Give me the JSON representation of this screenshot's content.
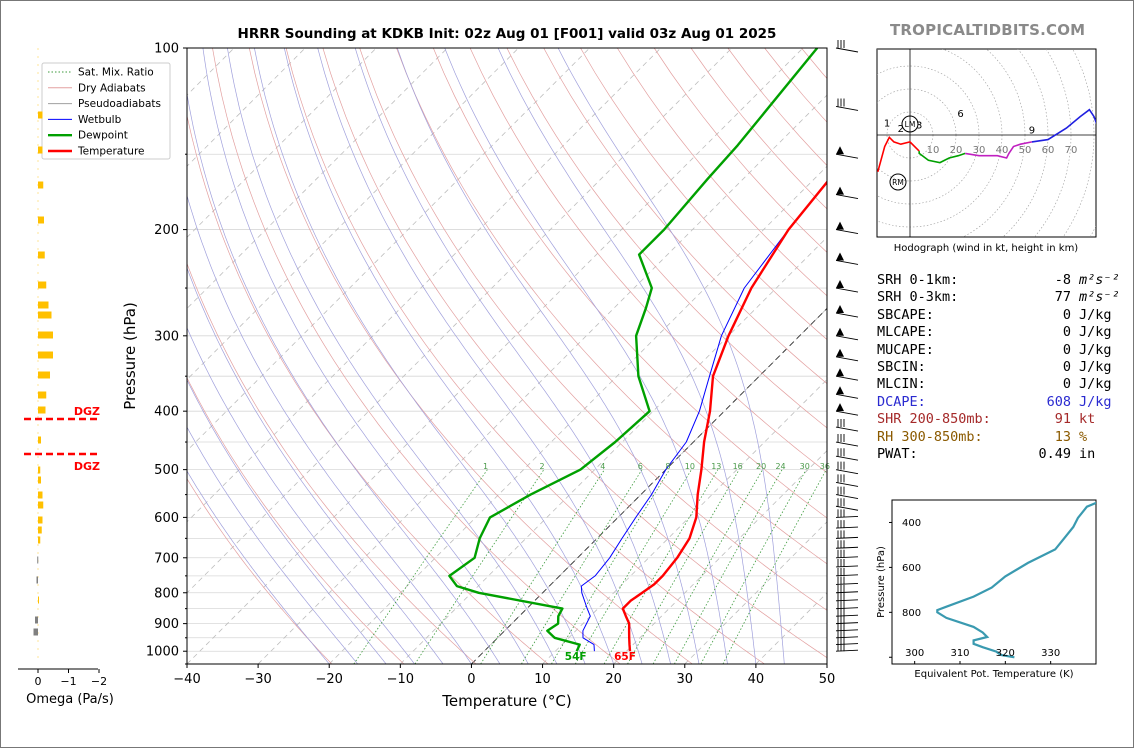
{
  "brand": "TROPICALTIDBITS.COM",
  "chart_data": [
    {
      "type": "line",
      "name": "skew-t",
      "title": "HRRR Sounding at KDKB Init: 02z Aug 01 [F001] valid 03z Aug 01 2025",
      "xlabel": "Temperature (°C)",
      "ylabel": "Pressure (hPa)",
      "xlim": [
        -40,
        50
      ],
      "ylim": [
        1050,
        100
      ],
      "yscale": "log",
      "xticks": [
        -40,
        -30,
        -20,
        -10,
        0,
        10,
        20,
        30,
        40,
        50
      ],
      "yticks": [
        100,
        200,
        300,
        400,
        500,
        600,
        700,
        800,
        900,
        1000
      ],
      "legend": [
        "Sat. Mix. Ratio",
        "Dry Adiabats",
        "Pseudoadiabats",
        "Wetbulb",
        "Dewpoint",
        "Temperature"
      ],
      "legend_position": "top-left",
      "mixing_ratio_labels": [
        "1",
        "2",
        "4",
        "6",
        "8",
        "10",
        "13",
        "16",
        "20",
        "24",
        "30",
        "36"
      ],
      "surface_labels": {
        "dewpoint": "54F",
        "temperature": "65F"
      },
      "temperature": [
        [
          1000,
          20.5
        ],
        [
          975,
          19.5
        ],
        [
          950,
          18.5
        ],
        [
          925,
          17.5
        ],
        [
          900,
          16.5
        ],
        [
          875,
          15
        ],
        [
          850,
          13.5
        ],
        [
          825,
          13.5
        ],
        [
          800,
          14
        ],
        [
          775,
          14.5
        ],
        [
          750,
          14.5
        ],
        [
          700,
          14
        ],
        [
          650,
          13
        ],
        [
          600,
          11
        ],
        [
          550,
          8
        ],
        [
          500,
          5
        ],
        [
          450,
          1.5
        ],
        [
          400,
          -2
        ],
        [
          350,
          -6.5
        ],
        [
          300,
          -10
        ],
        [
          250,
          -13.5
        ],
        [
          200,
          -16.5
        ],
        [
          150,
          -18.5
        ],
        [
          125,
          -20.5
        ],
        [
          100,
          -22.5
        ]
      ],
      "dewpoint": [
        [
          1000,
          13
        ],
        [
          975,
          12.5
        ],
        [
          950,
          8
        ],
        [
          925,
          6
        ],
        [
          900,
          6.5
        ],
        [
          875,
          5.5
        ],
        [
          850,
          5
        ],
        [
          800,
          -9
        ],
        [
          780,
          -13
        ],
        [
          750,
          -15.5
        ],
        [
          700,
          -14.5
        ],
        [
          650,
          -16.5
        ],
        [
          600,
          -18
        ],
        [
          550,
          -15.5
        ],
        [
          500,
          -12
        ],
        [
          450,
          -11
        ],
        [
          400,
          -10.5
        ],
        [
          350,
          -17
        ],
        [
          300,
          -23
        ],
        [
          270,
          -25.5
        ],
        [
          250,
          -27.5
        ],
        [
          220,
          -34
        ],
        [
          200,
          -34
        ],
        [
          165,
          -35
        ],
        [
          145,
          -35.5
        ],
        [
          100,
          -38
        ]
      ],
      "wetbulb": [
        [
          1000,
          15.5
        ],
        [
          975,
          14.5
        ],
        [
          950,
          12
        ],
        [
          925,
          11
        ],
        [
          900,
          10.5
        ],
        [
          875,
          10
        ],
        [
          850,
          8.5
        ],
        [
          800,
          5.5
        ],
        [
          780,
          4.5
        ],
        [
          750,
          5
        ],
        [
          700,
          4.5
        ],
        [
          650,
          3.5
        ],
        [
          600,
          2.5
        ],
        [
          550,
          1.5
        ],
        [
          500,
          0
        ],
        [
          450,
          -1
        ],
        [
          400,
          -3.5
        ],
        [
          350,
          -7
        ],
        [
          300,
          -11
        ],
        [
          250,
          -14.5
        ],
        [
          200,
          -16.5
        ],
        [
          150,
          -18.5
        ],
        [
          125,
          -20.5
        ],
        [
          100,
          -22.5
        ]
      ]
    },
    {
      "type": "line",
      "name": "hodograph",
      "xlabel": "Hodograph (wind in kt, height in km)",
      "ring_labels": [
        "10",
        "20",
        "30",
        "40",
        "50",
        "60",
        "70"
      ],
      "height_labels": [
        "1",
        "2",
        "3",
        "6",
        "9"
      ],
      "markers": [
        "LM",
        "RM"
      ]
    },
    {
      "type": "line",
      "name": "theta-e",
      "xlabel": "Equivalent Pot. Temperature (K)",
      "ylabel": "Pressure (hPa)",
      "xticks": [
        300,
        310,
        320,
        330
      ],
      "yticks": [
        400,
        600,
        800
      ],
      "points": [
        [
          322,
          1000
        ],
        [
          319,
          990
        ],
        [
          318,
          975
        ],
        [
          315,
          955
        ],
        [
          313,
          940
        ],
        [
          313,
          925
        ],
        [
          316,
          910
        ],
        [
          315,
          890
        ],
        [
          313,
          865
        ],
        [
          307,
          825
        ],
        [
          305,
          800
        ],
        [
          305,
          790
        ],
        [
          307,
          775
        ],
        [
          313,
          730
        ],
        [
          317,
          690
        ],
        [
          320,
          640
        ],
        [
          325,
          580
        ],
        [
          331,
          520
        ],
        [
          333,
          470
        ],
        [
          335,
          420
        ],
        [
          336,
          380
        ],
        [
          338,
          330
        ],
        [
          341,
          305
        ]
      ]
    },
    {
      "type": "bar",
      "name": "omega",
      "xlabel": "Omega (Pa/s)",
      "xticks": [
        "0",
        "−1",
        "−2"
      ],
      "dgz_label": "DGZ"
    }
  ],
  "stats": [
    {
      "label": "SRH 0-1km:",
      "value": "-8",
      "unit": "m²s⁻²",
      "color": "#000000"
    },
    {
      "label": "SRH 0-3km:",
      "value": "77",
      "unit": "m²s⁻²",
      "color": "#000000"
    },
    {
      "label": "SBCAPE:",
      "value": "0",
      "unit": "J/kg",
      "color": "#000000"
    },
    {
      "label": "MLCAPE:",
      "value": "0",
      "unit": "J/kg",
      "color": "#000000"
    },
    {
      "label": "MUCAPE:",
      "value": "0",
      "unit": "J/kg",
      "color": "#000000"
    },
    {
      "label": "SBCIN:",
      "value": "0",
      "unit": "J/kg",
      "color": "#000000"
    },
    {
      "label": "MLCIN:",
      "value": "0",
      "unit": "J/kg",
      "color": "#000000"
    },
    {
      "label": "DCAPE:",
      "value": "608",
      "unit": "J/kg",
      "color": "#2a2ad0"
    },
    {
      "label": "SHR 200-850mb:",
      "value": "91",
      "unit": "kt",
      "color": "#a52a2a"
    },
    {
      "label": "RH 300-850mb:",
      "value": "13",
      "unit": "%",
      "color": "#8b5a00"
    },
    {
      "label": "PWAT:",
      "value": "0.49",
      "unit": "in",
      "color": "#000000"
    }
  ],
  "colors": {
    "temperature": "#ff0000",
    "dewpoint": "#00a000",
    "wetbulb": "#0000ff",
    "theta_e": "#3a9ab0",
    "omega_up": "#ffc000",
    "omega_down": "#808080",
    "dgz": "#ff0000"
  }
}
